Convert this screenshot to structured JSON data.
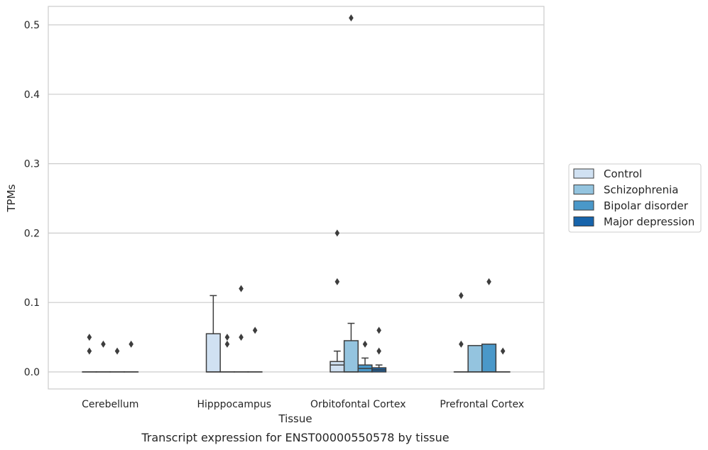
{
  "chart_data": {
    "type": "box",
    "title": "",
    "caption": "Transcript expression for ENST00000550578 by tissue",
    "xlabel": "Tissue",
    "ylabel": "TPMs",
    "ylim": [
      -0.025,
      0.537
    ],
    "yticks": [
      0.0,
      0.1,
      0.2,
      0.3,
      0.4,
      0.5
    ],
    "ytick_labels": [
      "0.0",
      "0.1",
      "0.2",
      "0.3",
      "0.4",
      "0.5"
    ],
    "grid": true,
    "legend_position": "right",
    "categories": [
      "Cerebellum",
      "Hipppocampus",
      "Orbitofontal Cortex",
      "Prefrontal Cortex"
    ],
    "series": [
      {
        "name": "Control",
        "color": "#d0e1f2",
        "boxes": [
          {
            "q1": 0,
            "median": 0,
            "q3": 0,
            "whisker_low": 0,
            "whisker_high": 0,
            "outliers": [
              0.03,
              0.05
            ]
          },
          {
            "q1": 0,
            "median": 0,
            "q3": 0.055,
            "whisker_low": 0,
            "whisker_high": 0.11,
            "outliers": []
          },
          {
            "q1": 0,
            "median": 0.01,
            "q3": 0.015,
            "whisker_low": 0,
            "whisker_high": 0.03,
            "outliers": [
              0.13,
              0.2
            ]
          },
          {
            "q1": 0,
            "median": 0,
            "q3": 0,
            "whisker_low": 0,
            "whisker_high": 0,
            "outliers": [
              0.04,
              0.11
            ]
          }
        ]
      },
      {
        "name": "Schizophrenia",
        "color": "#94c4df",
        "boxes": [
          {
            "q1": 0,
            "median": 0,
            "q3": 0,
            "whisker_low": 0,
            "whisker_high": 0,
            "outliers": [
              0.04
            ]
          },
          {
            "q1": 0,
            "median": 0,
            "q3": 0,
            "whisker_low": 0,
            "whisker_high": 0,
            "outliers": [
              0.04,
              0.05
            ]
          },
          {
            "q1": 0,
            "median": 0,
            "q3": 0.045,
            "whisker_low": 0,
            "whisker_high": 0.07,
            "outliers": [
              0.51
            ]
          },
          {
            "q1": 0,
            "median": 0,
            "q3": 0.038,
            "whisker_low": 0,
            "whisker_high": 0.038,
            "outliers": []
          }
        ]
      },
      {
        "name": "Bipolar disorder",
        "color": "#4a98c9",
        "boxes": [
          {
            "q1": 0,
            "median": 0,
            "q3": 0,
            "whisker_low": 0,
            "whisker_high": 0,
            "outliers": [
              0.03
            ]
          },
          {
            "q1": 0,
            "median": 0,
            "q3": 0,
            "whisker_low": 0,
            "whisker_high": 0,
            "outliers": [
              0.05,
              0.12
            ]
          },
          {
            "q1": 0,
            "median": 0.005,
            "q3": 0.01,
            "whisker_low": 0,
            "whisker_high": 0.02,
            "outliers": [
              0.04
            ]
          },
          {
            "q1": 0,
            "median": 0,
            "q3": 0.04,
            "whisker_low": 0,
            "whisker_high": 0.04,
            "outliers": [
              0.13
            ]
          }
        ]
      },
      {
        "name": "Major depression",
        "color": "#1764ab",
        "boxes": [
          {
            "q1": 0,
            "median": 0,
            "q3": 0,
            "whisker_low": 0,
            "whisker_high": 0,
            "outliers": [
              0.04
            ]
          },
          {
            "q1": 0,
            "median": 0,
            "q3": 0,
            "whisker_low": 0,
            "whisker_high": 0,
            "outliers": [
              0.06
            ]
          },
          {
            "q1": 0,
            "median": 0.003,
            "q3": 0.006,
            "whisker_low": 0,
            "whisker_high": 0.01,
            "outliers": [
              0.03,
              0.06
            ]
          },
          {
            "q1": 0,
            "median": 0,
            "q3": 0,
            "whisker_low": 0,
            "whisker_high": 0,
            "outliers": [
              0.03
            ]
          }
        ]
      }
    ]
  }
}
